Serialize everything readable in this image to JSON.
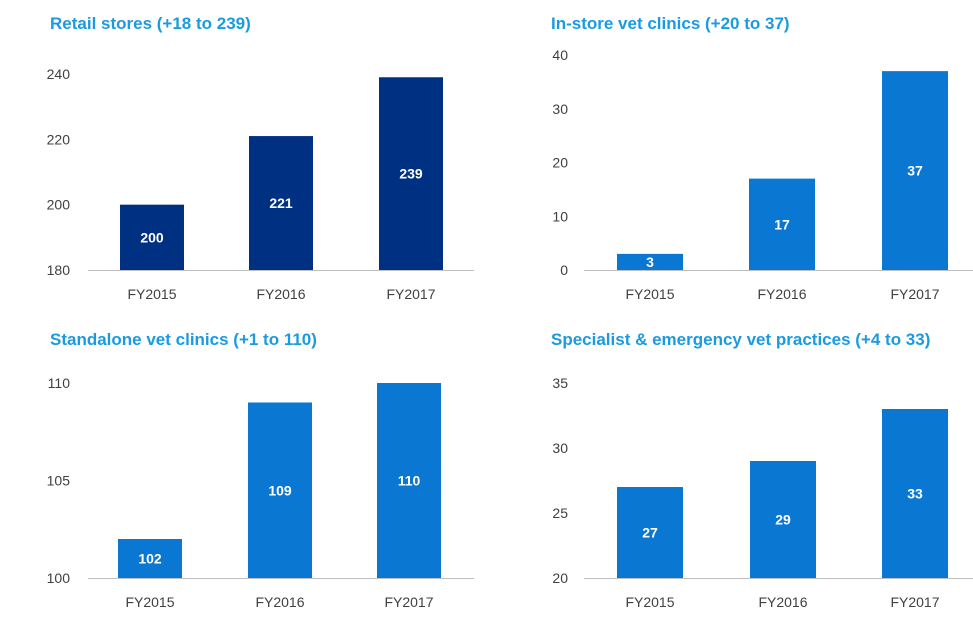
{
  "colors": {
    "title": "#1A9BE0",
    "dark_bar": "#003082",
    "light_bar": "#0A78D2",
    "axis": "#BFBFBF",
    "tick_text": "#404040",
    "data_label": "#FFFFFF"
  },
  "chart_data": [
    {
      "type": "bar",
      "title": "Retail stores (+18 to 239)",
      "categories": [
        "FY2015",
        "FY2016",
        "FY2017"
      ],
      "values": [
        200,
        221,
        239
      ],
      "data_labels": [
        "200",
        "221",
        "239"
      ],
      "ylim": [
        180,
        240
      ],
      "yticks": [
        "180",
        "200",
        "220",
        "240"
      ],
      "ytick_values": [
        180,
        200,
        220,
        240
      ],
      "bar_color": "#003082",
      "grid": false,
      "legend": "none"
    },
    {
      "type": "bar",
      "title": "In-store vet clinics (+20 to 37)",
      "categories": [
        "FY2015",
        "FY2016",
        "FY2017"
      ],
      "values": [
        3,
        17,
        37
      ],
      "data_labels": [
        "3",
        "17",
        "37"
      ],
      "ylim": [
        0,
        40
      ],
      "yticks": [
        "0",
        "10",
        "20",
        "30",
        "40"
      ],
      "ytick_values": [
        0,
        10,
        20,
        30,
        40
      ],
      "bar_color": "#0A78D2",
      "grid": false,
      "legend": "none"
    },
    {
      "type": "bar",
      "title": "Standalone vet clinics (+1 to 110)",
      "categories": [
        "FY2015",
        "FY2016",
        "FY2017"
      ],
      "values": [
        102,
        109,
        110
      ],
      "data_labels": [
        "102",
        "109",
        "110"
      ],
      "ylim": [
        100,
        110
      ],
      "yticks": [
        "100",
        "105",
        "110"
      ],
      "ytick_values": [
        100,
        105,
        110
      ],
      "bar_color": "#0A78D2",
      "grid": false,
      "legend": "none"
    },
    {
      "type": "bar",
      "title": "Specialist & emergency vet practices (+4 to 33)",
      "categories": [
        "FY2015",
        "FY2016",
        "FY2017"
      ],
      "values": [
        27,
        29,
        33
      ],
      "data_labels": [
        "27",
        "29",
        "33"
      ],
      "ylim": [
        20,
        35
      ],
      "yticks": [
        "20",
        "25",
        "30",
        "35"
      ],
      "ytick_values": [
        20,
        25,
        30,
        35
      ],
      "bar_color": "#0A78D2",
      "grid": false,
      "legend": "none"
    }
  ]
}
